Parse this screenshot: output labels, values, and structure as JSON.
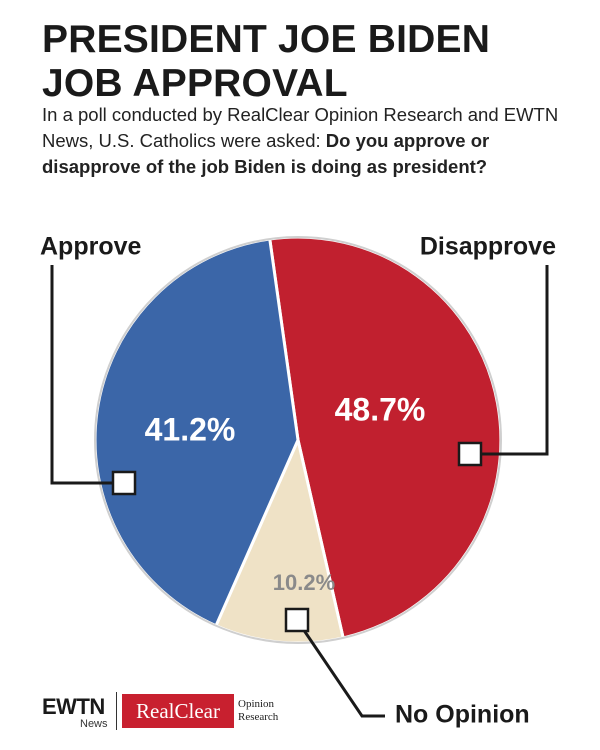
{
  "header": {
    "title_line1": "PRESIDENT JOE BIDEN",
    "title_line2": "JOB APPROVAL",
    "subtitle_plain": "In a poll conducted by RealClear Opinion Research and EWTN News, U.S. Catholics were asked: ",
    "subtitle_question": "Do you approve or disapprove of the job Biden is doing as president?"
  },
  "chart_data": {
    "type": "pie",
    "title": "PRESIDENT JOE BIDEN JOB APPROVAL",
    "slices": [
      {
        "key": "approve",
        "label": "Approve",
        "value": 41.2,
        "display": "41.2%",
        "color": "#3b66a8"
      },
      {
        "key": "disapprove",
        "label": "Disapprove",
        "value": 48.7,
        "display": "48.7%",
        "color": "#c1202f"
      },
      {
        "key": "no-opinion",
        "label": "No Opinion",
        "value": 10.2,
        "display": "10.2%",
        "color": "#efe2c6"
      }
    ]
  },
  "colors": {
    "approve": "#3b66a8",
    "disapprove": "#c1202f",
    "no_opinion": "#efe2c6",
    "text_dark": "#1a1a1a",
    "no_opinion_label": "#8a8a8a",
    "brand_red": "#c8202f"
  },
  "footer": {
    "ewtn_word": "EWTN",
    "ewtn_sub": "News",
    "realclear": "RealClear",
    "opinion": "Opinion",
    "research": "Research"
  }
}
